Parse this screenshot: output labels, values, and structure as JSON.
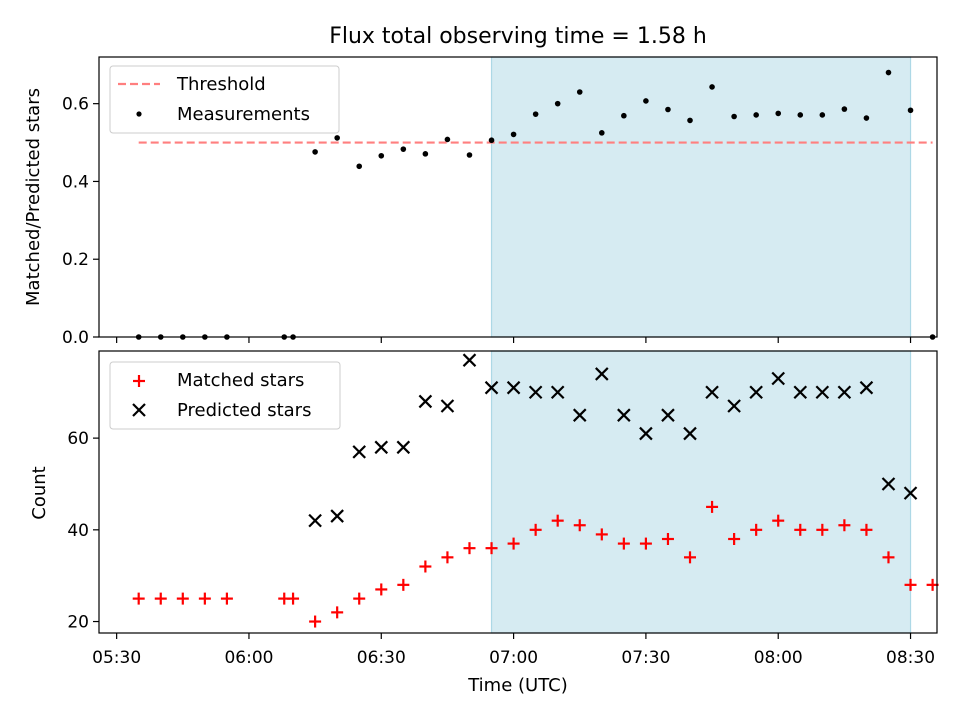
{
  "chart_data": {
    "title": "Flux total observing time = 1.58 h",
    "xlabel": "Time (UTC)",
    "x_tick_labels": [
      "05:30",
      "06:00",
      "06:30",
      "07:00",
      "07:30",
      "08:00",
      "08:30"
    ],
    "x_tick_values": [
      "05:30",
      "06:00",
      "06:30",
      "07:00",
      "07:30",
      "08:00",
      "08:30"
    ],
    "xlim": [
      "05:26",
      "08:36"
    ],
    "highlight": {
      "start": "06:55",
      "end": "08:30",
      "color": "#add8e6"
    },
    "panels": [
      {
        "type": "scatter",
        "ylabel": "Matched/Predicted stars",
        "ylim": [
          0,
          0.72
        ],
        "y_ticks": [
          0.0,
          0.2,
          0.4,
          0.6
        ],
        "y_tick_labels": [
          "0.0",
          "0.2",
          "0.4",
          "0.6"
        ],
        "legend_placement": "top-left",
        "series": [
          {
            "name": "Threshold",
            "style": "dashed-line",
            "color": "#ff7f7f",
            "x": [
              "05:35",
              "08:35"
            ],
            "y": [
              0.5,
              0.5
            ]
          },
          {
            "name": "Measurements",
            "style": "dot",
            "color": "#000000",
            "x": [
              "05:35",
              "05:40",
              "05:45",
              "05:50",
              "05:55",
              "06:08",
              "06:10",
              "06:15",
              "06:20",
              "06:25",
              "06:30",
              "06:35",
              "06:40",
              "06:45",
              "06:50",
              "06:55",
              "07:00",
              "07:05",
              "07:10",
              "07:15",
              "07:20",
              "07:25",
              "07:30",
              "07:35",
              "07:40",
              "07:45",
              "07:50",
              "07:55",
              "08:00",
              "08:05",
              "08:10",
              "08:15",
              "08:20",
              "08:25",
              "08:30",
              "08:35"
            ],
            "y": [
              0.0,
              0.0,
              0.0,
              0.0,
              0.0,
              0.0,
              0.0,
              0.476,
              0.512,
              0.439,
              0.466,
              0.483,
              0.471,
              0.508,
              0.468,
              0.506,
              0.521,
              0.573,
              0.6,
              0.63,
              0.525,
              0.569,
              0.607,
              0.585,
              0.557,
              0.643,
              0.567,
              0.571,
              0.575,
              0.571,
              0.571,
              0.586,
              0.563,
              0.68,
              0.583,
              0.0
            ]
          }
        ]
      },
      {
        "type": "scatter",
        "ylabel": "Count",
        "ylim": [
          17.5,
          79
        ],
        "y_ticks": [
          20,
          40,
          60
        ],
        "y_tick_labels": [
          "20",
          "40",
          "60"
        ],
        "legend_placement": "top-left",
        "series": [
          {
            "name": "Matched stars",
            "style": "plus",
            "color": "#ff0000",
            "x": [
              "05:35",
              "05:40",
              "05:45",
              "05:50",
              "05:55",
              "06:08",
              "06:10",
              "06:15",
              "06:20",
              "06:25",
              "06:30",
              "06:35",
              "06:40",
              "06:45",
              "06:50",
              "06:55",
              "07:00",
              "07:05",
              "07:10",
              "07:15",
              "07:20",
              "07:25",
              "07:30",
              "07:35",
              "07:40",
              "07:45",
              "07:50",
              "07:55",
              "08:00",
              "08:05",
              "08:10",
              "08:15",
              "08:20",
              "08:25",
              "08:30",
              "08:35"
            ],
            "y": [
              25,
              25,
              25,
              25,
              25,
              25,
              25,
              20,
              22,
              25,
              27,
              28,
              32,
              34,
              36,
              36,
              37,
              40,
              42,
              41,
              39,
              37,
              37,
              38,
              34,
              45,
              38,
              40,
              42,
              40,
              40,
              41,
              40,
              34,
              28,
              28
            ]
          },
          {
            "name": "Predicted stars",
            "style": "x",
            "color": "#000000",
            "x": [
              "06:15",
              "06:20",
              "06:25",
              "06:30",
              "06:35",
              "06:40",
              "06:45",
              "06:50",
              "06:55",
              "07:00",
              "07:05",
              "07:10",
              "07:15",
              "07:20",
              "07:25",
              "07:30",
              "07:35",
              "07:40",
              "07:45",
              "07:50",
              "07:55",
              "08:00",
              "08:05",
              "08:10",
              "08:15",
              "08:20",
              "08:25",
              "08:30"
            ],
            "y": [
              42,
              43,
              57,
              58,
              58,
              68,
              67,
              77,
              71,
              71,
              70,
              70,
              65,
              74,
              65,
              61,
              65,
              61,
              70,
              67,
              70,
              73,
              70,
              70,
              70,
              71,
              50,
              48
            ]
          }
        ]
      }
    ]
  }
}
